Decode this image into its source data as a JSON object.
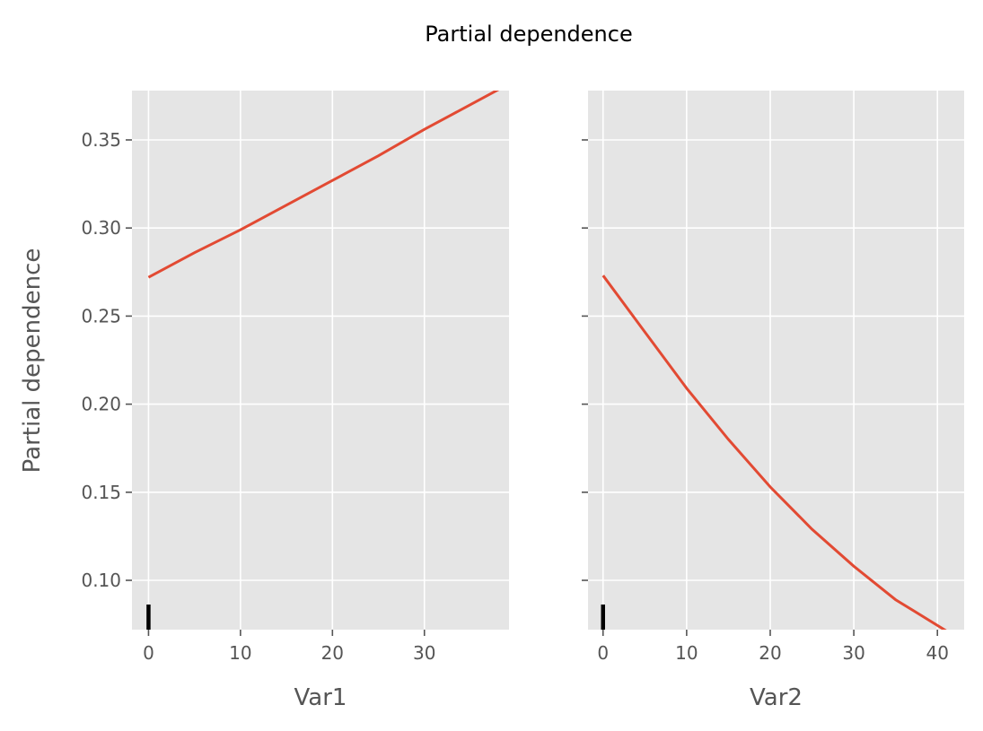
{
  "title": "Partial dependence",
  "style": {
    "panel_bg": "#e5e5e5",
    "grid": "#ffffff",
    "line": "#e24a33",
    "text": "#555555",
    "rug": "#000000"
  },
  "chart_data": [
    {
      "type": "line",
      "xlabel": "Var1",
      "ylabel": "Partial dependence",
      "xlim": [
        -1.8,
        39.2
      ],
      "ylim": [
        0.072,
        0.378
      ],
      "xticks": [
        0,
        10,
        20,
        30
      ],
      "yticks": [
        0.1,
        0.15,
        0.2,
        0.25,
        0.3,
        0.35
      ],
      "ytick_labels": [
        "0.10",
        "0.15",
        "0.20",
        "0.25",
        "0.30",
        "0.35"
      ],
      "show_ytick_labels": true,
      "grid": true,
      "series": [
        {
          "x": [
            0,
            5,
            10,
            15,
            20,
            25,
            30,
            35,
            38.2
          ],
          "y": [
            0.272,
            0.286,
            0.299,
            0.313,
            0.327,
            0.341,
            0.356,
            0.37,
            0.379
          ]
        }
      ],
      "rug": [
        0
      ]
    },
    {
      "type": "line",
      "xlabel": "Var2",
      "ylabel": "",
      "xlim": [
        -1.8,
        43.2
      ],
      "ylim": [
        0.072,
        0.378
      ],
      "xticks": [
        0,
        10,
        20,
        30,
        40
      ],
      "yticks": [
        0.1,
        0.15,
        0.2,
        0.25,
        0.3,
        0.35
      ],
      "ytick_labels": [],
      "show_ytick_labels": false,
      "grid": true,
      "series": [
        {
          "x": [
            0,
            5,
            10,
            15,
            20,
            25,
            30,
            35,
            41.5
          ],
          "y": [
            0.273,
            0.241,
            0.209,
            0.18,
            0.153,
            0.129,
            0.108,
            0.089,
            0.07
          ]
        }
      ],
      "rug": [
        0
      ]
    }
  ]
}
